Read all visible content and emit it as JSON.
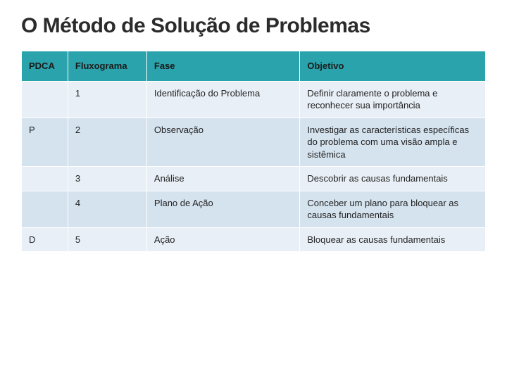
{
  "title": "O Método de Solução de Problemas",
  "table": {
    "columns": [
      "PDCA",
      "Fluxograma",
      "Fase",
      "Objetivo"
    ],
    "rows": [
      [
        "",
        "1",
        "Identificação do Problema",
        "Definir claramente o problema e reconhecer sua importância"
      ],
      [
        "P",
        "2",
        "Observação",
        "Investigar as características específicas do problema com uma visão ampla e sistêmica"
      ],
      [
        "",
        "3",
        "Análise",
        "Descobrir as causas fundamentais"
      ],
      [
        "",
        "4",
        "Plano de Ação",
        "Conceber um plano para bloquear as causas fundamentais"
      ],
      [
        "D",
        "5",
        "Ação",
        "Bloquear as causas fundamentais"
      ]
    ],
    "header_bg": "#2aa3ac",
    "row_odd_bg": "#e8eff6",
    "row_even_bg": "#d5e3ef",
    "border_color": "#ffffff",
    "text_color": "#222222",
    "header_text_color": "#1a1a1a",
    "font_size": 13,
    "header_font_size": 13,
    "title_font_size": 30,
    "col_widths": [
      "10%",
      "17%",
      "33%",
      "40%"
    ]
  }
}
